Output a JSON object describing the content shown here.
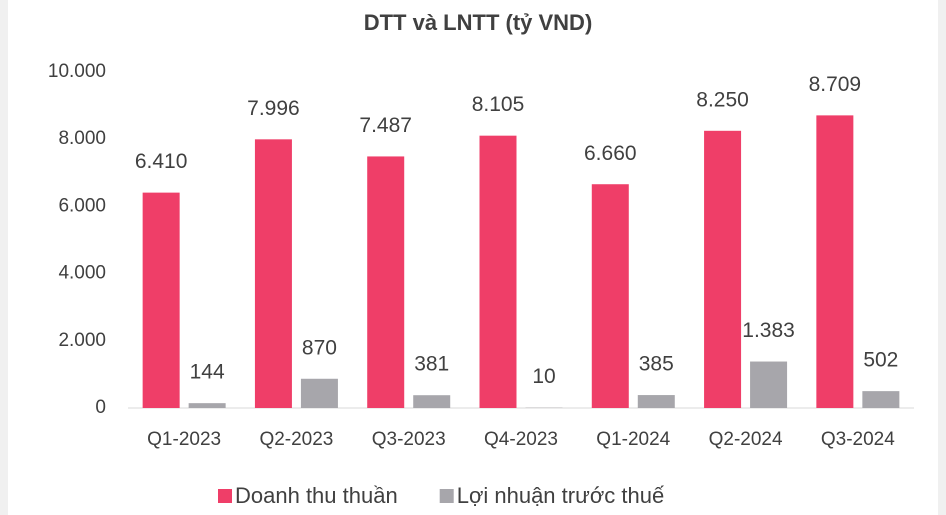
{
  "chart_data": {
    "type": "bar",
    "title": "DTT và LNTT (tỷ VND)",
    "categories": [
      "Q1-2023",
      "Q2-2023",
      "Q3-2023",
      "Q4-2023",
      "Q1-2024",
      "Q2-2024",
      "Q3-2024"
    ],
    "series": [
      {
        "name": "Doanh thu thuần",
        "color": "#ef3e68",
        "values": [
          6410,
          7996,
          7487,
          8105,
          6660,
          8250,
          8709
        ],
        "value_labels": [
          "6.410",
          "7.996",
          "7.487",
          "8.105",
          "6.660",
          "8.250",
          "8.709"
        ]
      },
      {
        "name": "Lợi nhuận trước thuế",
        "color": "#a7a6ab",
        "values": [
          144,
          870,
          381,
          10,
          385,
          1383,
          502
        ],
        "value_labels": [
          "144",
          "870",
          "381",
          "10",
          "385",
          "1.383",
          "502"
        ]
      }
    ],
    "ylim": [
      0,
      10000
    ],
    "yticks": [
      0,
      {
        "value": 2000,
        "label": "2.000"
      },
      {
        "value": 4000,
        "label": "4.000"
      },
      {
        "value": 6000,
        "label": "6.000"
      },
      {
        "value": 8000,
        "label": "8.000"
      },
      {
        "value": 10000,
        "label": "10.000"
      }
    ],
    "grid": false,
    "legend": "bottom"
  }
}
